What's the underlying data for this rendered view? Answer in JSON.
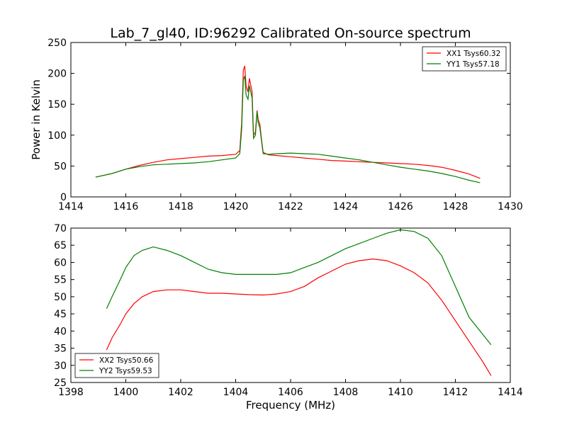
{
  "figure": {
    "title": "Lab_7_gl40, ID:96292 Calibrated On-source spectrum",
    "xlabel": "Frequency (MHz)"
  },
  "chart_data": [
    {
      "type": "line",
      "title": "Lab_7_gl40, ID:96292 Calibrated On-source spectrum",
      "xlabel": "",
      "ylabel": "Power in Kelvin",
      "xlim": [
        1414,
        1430
      ],
      "ylim": [
        0,
        250
      ],
      "xticks": [
        "1414",
        "1416",
        "1418",
        "1420",
        "1422",
        "1424",
        "1426",
        "1428",
        "1430"
      ],
      "yticks": [
        "0",
        "50",
        "100",
        "150",
        "200",
        "250"
      ],
      "grid": false,
      "legend_position": "upper-right",
      "series": [
        {
          "name": "XX1 Tsys60.32",
          "color": "#ff0000",
          "x": [
            1414.9,
            1415.5,
            1416.0,
            1416.5,
            1417.0,
            1417.5,
            1418.0,
            1418.5,
            1419.0,
            1419.5,
            1420.0,
            1420.15,
            1420.22,
            1420.28,
            1420.33,
            1420.38,
            1420.45,
            1420.5,
            1420.6,
            1420.65,
            1420.72,
            1420.78,
            1420.82,
            1420.88,
            1420.95,
            1421.0,
            1421.2,
            1421.5,
            1422.0,
            1422.5,
            1423.0,
            1423.5,
            1424.0,
            1424.5,
            1425.0,
            1425.5,
            1426.0,
            1426.5,
            1427.0,
            1427.5,
            1428.0,
            1428.5,
            1428.9
          ],
          "y": [
            32,
            38,
            45,
            51,
            56,
            60,
            62,
            64,
            66,
            67,
            69,
            75,
            120,
            205,
            212,
            180,
            170,
            192,
            170,
            100,
            105,
            140,
            125,
            118,
            90,
            72,
            68,
            67,
            65,
            63,
            61,
            59,
            58,
            57,
            56,
            55,
            54,
            53,
            51,
            48,
            43,
            37,
            30
          ]
        },
        {
          "name": "YY1 Tsys57.18",
          "color": "#008000",
          "x": [
            1414.9,
            1415.5,
            1416.0,
            1416.5,
            1417.0,
            1417.5,
            1418.0,
            1418.5,
            1419.0,
            1419.5,
            1420.0,
            1420.15,
            1420.22,
            1420.28,
            1420.33,
            1420.38,
            1420.45,
            1420.5,
            1420.6,
            1420.65,
            1420.72,
            1420.78,
            1420.82,
            1420.88,
            1420.95,
            1421.0,
            1421.2,
            1421.5,
            1422.0,
            1422.5,
            1423.0,
            1423.5,
            1424.0,
            1424.5,
            1425.0,
            1425.5,
            1426.0,
            1426.5,
            1427.0,
            1427.5,
            1428.0,
            1428.5,
            1428.9
          ],
          "y": [
            32,
            38,
            45,
            49,
            52,
            53,
            54,
            55,
            57,
            60,
            63,
            70,
            110,
            190,
            195,
            165,
            158,
            180,
            160,
            95,
            100,
            138,
            120,
            112,
            88,
            70,
            69,
            70,
            71,
            70,
            69,
            66,
            63,
            60,
            56,
            52,
            48,
            45,
            42,
            38,
            33,
            27,
            23
          ]
        }
      ]
    },
    {
      "type": "line",
      "title": "",
      "xlabel": "Frequency (MHz)",
      "ylabel": "",
      "xlim": [
        1398,
        1414
      ],
      "ylim": [
        25,
        70
      ],
      "xticks": [
        "1398",
        "1400",
        "1402",
        "1404",
        "1406",
        "1408",
        "1410",
        "1412",
        "1414"
      ],
      "yticks": [
        "25",
        "30",
        "35",
        "40",
        "45",
        "50",
        "55",
        "60",
        "65",
        "70"
      ],
      "grid": false,
      "legend_position": "lower-left",
      "series": [
        {
          "name": "XX2 Tsys50.66",
          "color": "#ff0000",
          "x": [
            1399.3,
            1399.5,
            1399.8,
            1400.0,
            1400.3,
            1400.6,
            1401.0,
            1401.5,
            1402.0,
            1402.5,
            1403.0,
            1403.5,
            1404.0,
            1404.5,
            1405.0,
            1405.5,
            1406.0,
            1406.5,
            1407.0,
            1407.5,
            1408.0,
            1408.5,
            1409.0,
            1409.5,
            1410.0,
            1410.5,
            1411.0,
            1411.5,
            1412.0,
            1412.5,
            1413.0,
            1413.3
          ],
          "y": [
            34.5,
            38,
            42,
            45,
            48,
            50,
            51.5,
            52,
            52,
            51.5,
            51,
            51,
            50.8,
            50.6,
            50.5,
            50.8,
            51.5,
            53,
            55.5,
            57.5,
            59.5,
            60.5,
            61,
            60.5,
            59,
            57,
            54,
            49,
            43,
            37,
            31,
            27
          ]
        },
        {
          "name": "YY2 Tsys59.53",
          "color": "#008000",
          "x": [
            1399.3,
            1399.5,
            1399.8,
            1400.0,
            1400.3,
            1400.6,
            1401.0,
            1401.5,
            1402.0,
            1402.5,
            1403.0,
            1403.5,
            1404.0,
            1404.5,
            1405.0,
            1405.5,
            1406.0,
            1406.5,
            1407.0,
            1407.5,
            1408.0,
            1408.5,
            1409.0,
            1409.5,
            1410.0,
            1410.5,
            1411.0,
            1411.5,
            1412.0,
            1412.5,
            1413.0,
            1413.3
          ],
          "y": [
            46.5,
            50,
            55,
            58.5,
            62,
            63.5,
            64.5,
            63.5,
            62,
            60,
            58,
            57,
            56.5,
            56.5,
            56.5,
            56.5,
            57,
            58.5,
            60,
            62,
            64,
            65.5,
            67,
            68.5,
            69.5,
            69,
            67,
            62,
            53,
            44,
            39,
            36
          ]
        }
      ]
    }
  ]
}
